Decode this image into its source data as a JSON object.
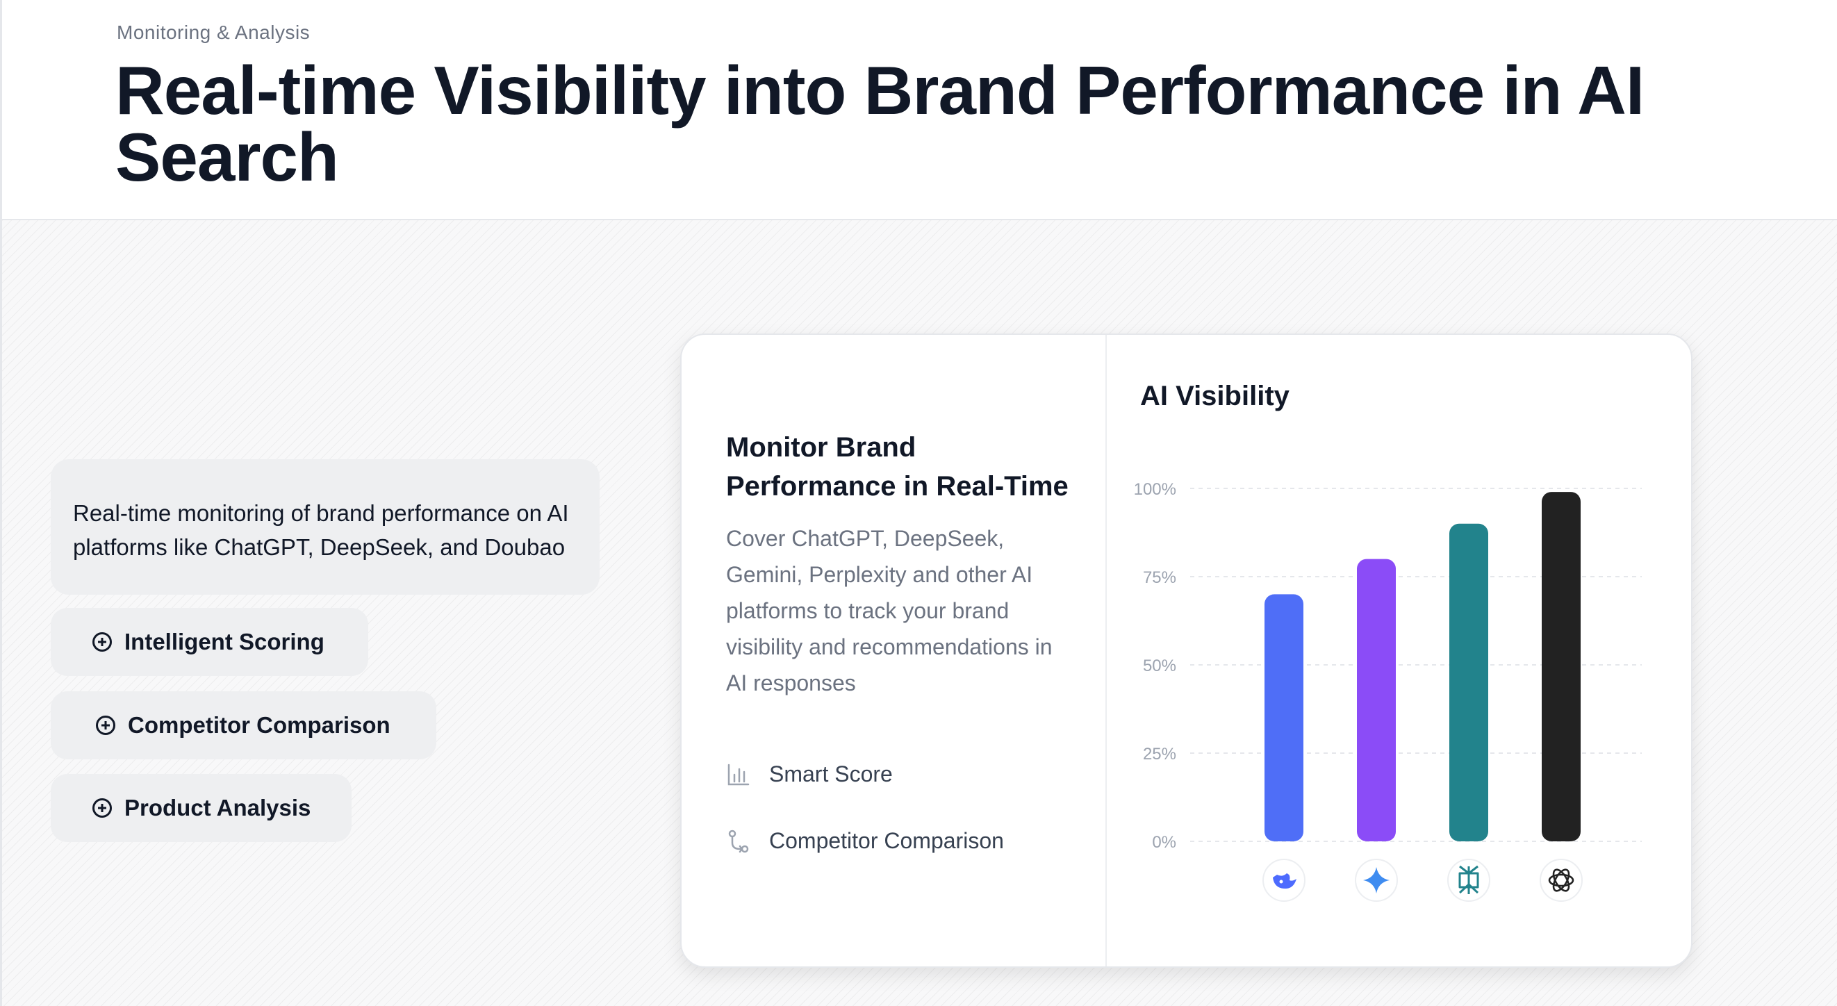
{
  "header": {
    "eyebrow": "Monitoring & Analysis",
    "headline": "Real-time Visibility into Brand Performance in AI Search"
  },
  "left_panel": {
    "description": "Real-time monitoring of brand performance on AI platforms like ChatGPT, DeepSeek, and Doubao",
    "features": [
      {
        "label": "Intelligent Scoring",
        "icon": "plus-circle-icon"
      },
      {
        "label": "Competitor Comparison",
        "icon": "plus-circle-icon"
      },
      {
        "label": "Product Analysis",
        "icon": "plus-circle-icon"
      }
    ]
  },
  "card": {
    "title": "Monitor Brand Performance in Real-Time",
    "body": "Cover ChatGPT, DeepSeek, Gemini, Perplexity and other AI platforms to track your brand visibility and recommendations in AI responses",
    "items": [
      {
        "label": "Smart Score",
        "icon": "bar-chart-icon"
      },
      {
        "label": "Competitor Comparison",
        "icon": "compare-icon"
      }
    ]
  },
  "chart_data": {
    "type": "bar",
    "title": "AI Visibility",
    "categories": [
      "DeepSeek",
      "Gemini",
      "Perplexity",
      "ChatGPT"
    ],
    "category_icons": [
      "deepseek-logo-icon",
      "gemini-logo-icon",
      "perplexity-logo-icon",
      "chatgpt-logo-icon"
    ],
    "values": [
      70,
      80,
      90,
      99
    ],
    "colors": [
      "#4f6ef7",
      "#8b4cf7",
      "#22838c",
      "#222222"
    ],
    "yticks": [
      "0%",
      "25%",
      "50%",
      "75%",
      "100%"
    ],
    "ylim": [
      0,
      100
    ],
    "grid": true
  }
}
